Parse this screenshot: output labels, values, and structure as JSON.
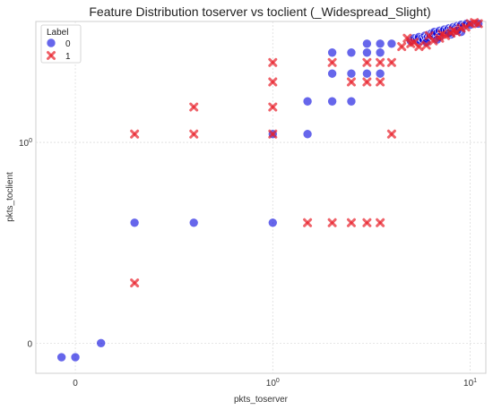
{
  "chart_data": {
    "type": "scatter",
    "title": "Feature Distribution toserver vs toclient (_Widespread_Slight)",
    "xlabel": "pkts_toserver",
    "ylabel": "pkts_toclient",
    "xscale": "symlog",
    "yscale": "symlog",
    "xlim": [
      -0.2,
      12
    ],
    "ylim": [
      -0.15,
      4
    ],
    "grid": true,
    "legend_position": "top-left",
    "legend_title": "Label",
    "x_ticks": [
      {
        "value": 0,
        "label": "0"
      },
      {
        "value": 1,
        "label": "10",
        "sup": "0"
      },
      {
        "value": 10,
        "label": "10",
        "sup": "1"
      }
    ],
    "y_ticks": [
      {
        "value": 0,
        "label": "0"
      },
      {
        "value": 1,
        "label": "10",
        "sup": "0"
      }
    ],
    "series": [
      {
        "name": "0",
        "color": "#0000dd",
        "marker": "circle",
        "points": [
          [
            -0.07,
            -0.07
          ],
          [
            0.0,
            -0.07
          ],
          [
            0.13,
            0.0
          ],
          [
            0.3,
            0.6
          ],
          [
            0.6,
            0.6
          ],
          [
            1.0,
            0.6
          ],
          [
            1.0,
            1.1
          ],
          [
            1.5,
            1.1
          ],
          [
            1.5,
            1.6
          ],
          [
            2.0,
            1.6
          ],
          [
            2.0,
            2.2
          ],
          [
            2.5,
            1.6
          ],
          [
            2.5,
            2.2
          ],
          [
            3.0,
            2.2
          ],
          [
            3.5,
            2.2
          ],
          [
            2.0,
            2.8
          ],
          [
            2.5,
            2.8
          ],
          [
            3.0,
            2.8
          ],
          [
            3.0,
            3.1
          ],
          [
            3.5,
            3.1
          ],
          [
            3.5,
            2.8
          ],
          [
            4.0,
            3.1
          ],
          [
            5.0,
            3.2
          ],
          [
            5.2,
            3.3
          ],
          [
            5.4,
            3.25
          ],
          [
            5.5,
            3.35
          ],
          [
            5.6,
            3.2
          ],
          [
            5.7,
            3.3
          ],
          [
            5.8,
            3.25
          ],
          [
            5.9,
            3.4
          ],
          [
            6.0,
            3.3
          ],
          [
            6.1,
            3.35
          ],
          [
            6.2,
            3.45
          ],
          [
            6.3,
            3.4
          ],
          [
            6.4,
            3.5
          ],
          [
            6.5,
            3.45
          ],
          [
            6.6,
            3.55
          ],
          [
            6.8,
            3.5
          ],
          [
            7.0,
            3.6
          ],
          [
            7.2,
            3.55
          ],
          [
            7.4,
            3.65
          ],
          [
            7.6,
            3.6
          ],
          [
            7.8,
            3.7
          ],
          [
            8.0,
            3.65
          ],
          [
            8.2,
            3.75
          ],
          [
            8.4,
            3.7
          ],
          [
            8.6,
            3.8
          ],
          [
            8.8,
            3.75
          ],
          [
            9.0,
            3.85
          ],
          [
            9.3,
            3.8
          ],
          [
            9.6,
            3.9
          ],
          [
            10.0,
            3.85
          ],
          [
            11.0,
            3.9
          ],
          [
            9.0,
            3.55
          ],
          [
            8.0,
            3.45
          ],
          [
            7.0,
            3.35
          ],
          [
            6.0,
            3.15
          ],
          [
            6.8,
            3.25
          ],
          [
            7.8,
            3.5
          ],
          [
            8.6,
            3.6
          ]
        ]
      },
      {
        "name": "1",
        "color": "#e8202a",
        "marker": "x",
        "points": [
          [
            0.3,
            0.3
          ],
          [
            0.3,
            1.1
          ],
          [
            0.6,
            1.1
          ],
          [
            0.6,
            1.5
          ],
          [
            1.0,
            1.5
          ],
          [
            1.0,
            2.0
          ],
          [
            1.0,
            2.5
          ],
          [
            1.0,
            1.1
          ],
          [
            1.5,
            0.6
          ],
          [
            2.0,
            0.6
          ],
          [
            2.5,
            0.6
          ],
          [
            3.0,
            0.6
          ],
          [
            3.5,
            0.6
          ],
          [
            2.0,
            2.5
          ],
          [
            2.5,
            2.0
          ],
          [
            3.0,
            2.0
          ],
          [
            3.5,
            2.0
          ],
          [
            4.0,
            1.1
          ],
          [
            3.0,
            2.5
          ],
          [
            3.5,
            2.5
          ],
          [
            4.0,
            2.5
          ],
          [
            4.5,
            3.0
          ],
          [
            5.0,
            3.1
          ],
          [
            5.5,
            3.0
          ],
          [
            6.0,
            3.05
          ],
          [
            6.5,
            3.2
          ],
          [
            7.0,
            3.3
          ],
          [
            7.5,
            3.4
          ],
          [
            8.0,
            3.5
          ],
          [
            8.5,
            3.55
          ],
          [
            9.0,
            3.7
          ],
          [
            9.5,
            3.75
          ],
          [
            10.0,
            3.9
          ],
          [
            10.5,
            3.95
          ],
          [
            11.0,
            3.9
          ],
          [
            4.8,
            3.3
          ],
          [
            5.2,
            3.15
          ],
          [
            6.2,
            3.4
          ],
          [
            7.2,
            3.45
          ],
          [
            8.2,
            3.6
          ]
        ]
      }
    ]
  }
}
